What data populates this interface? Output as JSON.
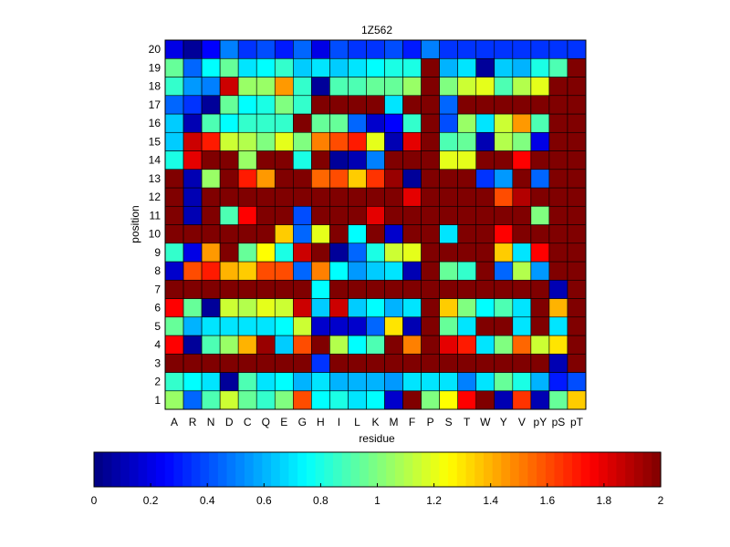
{
  "chart_data": {
    "type": "heatmap",
    "title": "1Z562",
    "xlabel": "residue",
    "ylabel": "position",
    "x_categories": [
      "A",
      "R",
      "N",
      "D",
      "C",
      "Q",
      "E",
      "G",
      "H",
      "I",
      "L",
      "K",
      "M",
      "F",
      "P",
      "S",
      "T",
      "W",
      "Y",
      "V",
      "pY",
      "pS",
      "pT"
    ],
    "y_categories": [
      1,
      2,
      3,
      4,
      5,
      6,
      7,
      8,
      9,
      10,
      11,
      12,
      13,
      14,
      15,
      16,
      17,
      18,
      19,
      20
    ],
    "colormap": "jet",
    "clim": [
      0,
      2
    ],
    "colorbar_ticks": [
      "0",
      "0.2",
      "0.4",
      "0.6",
      "0.8",
      "1",
      "1.2",
      "1.4",
      "1.6",
      "1.8",
      "2"
    ],
    "values": [
      [
        1.05,
        0.45,
        0.9,
        1.15,
        0.95,
        0.85,
        1.0,
        1.6,
        0.75,
        0.8,
        0.7,
        0.75,
        0.15,
        2.0,
        1.0,
        1.25,
        1.75,
        2.0,
        0.1,
        1.65,
        0.1,
        0.95,
        1.35
      ],
      [
        0.85,
        0.75,
        0.7,
        0.05,
        0.9,
        0.7,
        0.75,
        0.6,
        0.7,
        0.6,
        0.6,
        0.6,
        0.55,
        0.7,
        0.7,
        0.7,
        0.5,
        0.7,
        0.95,
        0.8,
        0.6,
        0.3,
        0.4
      ],
      [
        2.0,
        2.0,
        2.0,
        2.0,
        2.0,
        2.0,
        2.0,
        2.0,
        0.35,
        2.0,
        2.0,
        2.0,
        2.0,
        2.0,
        2.0,
        2.0,
        2.0,
        2.0,
        2.0,
        2.0,
        2.0,
        0.1,
        2.0
      ],
      [
        1.75,
        0.05,
        0.9,
        1.05,
        1.4,
        1.95,
        0.65,
        1.6,
        2.0,
        1.1,
        0.75,
        0.9,
        2.0,
        1.5,
        2.0,
        1.8,
        1.7,
        0.7,
        1.0,
        1.55,
        1.15,
        1.3,
        2.0
      ],
      [
        0.95,
        0.6,
        0.7,
        0.7,
        0.7,
        0.7,
        0.75,
        1.15,
        0.15,
        0.15,
        0.15,
        0.45,
        1.3,
        0.1,
        2.0,
        0.95,
        0.7,
        2.0,
        2.0,
        0.7,
        2.0,
        0.7,
        2.0
      ],
      [
        1.75,
        0.95,
        0.05,
        1.15,
        1.1,
        1.2,
        1.15,
        1.85,
        0.65,
        1.85,
        0.65,
        0.75,
        0.6,
        0.7,
        2.0,
        1.35,
        1.0,
        0.75,
        0.9,
        0.7,
        2.0,
        1.4,
        2.0
      ],
      [
        2.0,
        2.0,
        2.0,
        2.0,
        2.0,
        2.0,
        2.0,
        2.0,
        0.75,
        2.0,
        2.0,
        2.0,
        2.0,
        2.0,
        2.0,
        2.0,
        2.0,
        2.0,
        2.0,
        2.0,
        2.0,
        0.1,
        2.0
      ],
      [
        0.15,
        1.6,
        1.7,
        1.4,
        1.35,
        1.6,
        1.6,
        0.45,
        1.5,
        0.75,
        0.55,
        0.65,
        0.7,
        0.1,
        2.0,
        0.95,
        0.85,
        2.0,
        0.45,
        1.1,
        0.55,
        2.0,
        2.0
      ],
      [
        0.85,
        0.2,
        1.45,
        2.0,
        0.95,
        1.25,
        0.8,
        1.85,
        2.0,
        0.05,
        0.45,
        0.8,
        1.15,
        1.2,
        2.0,
        2.0,
        2.0,
        2.0,
        1.35,
        0.7,
        1.75,
        2.0,
        2.0
      ],
      [
        2.0,
        2.0,
        2.0,
        2.0,
        2.0,
        2.0,
        1.35,
        0.45,
        1.2,
        2.0,
        0.75,
        2.0,
        0.15,
        2.0,
        2.0,
        0.7,
        2.0,
        2.0,
        1.75,
        2.0,
        2.0,
        2.0,
        2.0
      ],
      [
        2.0,
        0.1,
        2.0,
        0.9,
        1.75,
        2.0,
        2.0,
        0.4,
        2.0,
        2.0,
        2.0,
        1.8,
        2.0,
        2.0,
        2.0,
        2.0,
        2.0,
        2.0,
        2.0,
        2.0,
        1.0,
        2.0,
        2.0
      ],
      [
        2.0,
        0.1,
        2.0,
        2.0,
        2.0,
        2.0,
        2.0,
        2.0,
        2.0,
        2.0,
        2.0,
        2.0,
        2.0,
        1.8,
        2.0,
        2.0,
        2.0,
        2.0,
        1.6,
        1.9,
        2.0,
        2.0,
        2.0
      ],
      [
        2.0,
        0.1,
        1.05,
        2.0,
        1.7,
        1.45,
        2.0,
        2.0,
        1.55,
        1.6,
        1.35,
        1.65,
        1.95,
        0.05,
        2.0,
        2.0,
        2.0,
        0.35,
        0.55,
        2.0,
        0.45,
        2.0,
        2.0
      ],
      [
        0.8,
        1.8,
        2.0,
        2.0,
        1.05,
        2.0,
        2.0,
        0.8,
        2.0,
        0.05,
        0.1,
        0.5,
        2.0,
        2.0,
        2.0,
        1.2,
        1.2,
        2.0,
        2.0,
        1.75,
        2.0,
        2.0,
        2.0
      ],
      [
        0.65,
        1.85,
        1.7,
        1.15,
        1.1,
        1.0,
        1.2,
        1.0,
        1.5,
        1.6,
        1.7,
        1.2,
        0.1,
        1.8,
        2.0,
        0.9,
        0.95,
        0.1,
        1.1,
        1.0,
        0.2,
        2.0,
        2.0
      ],
      [
        0.65,
        0.1,
        0.9,
        0.75,
        0.85,
        0.85,
        0.85,
        2.0,
        0.95,
        0.95,
        0.45,
        0.15,
        0.25,
        0.85,
        2.0,
        0.4,
        1.05,
        0.7,
        1.15,
        1.45,
        0.9,
        2.0,
        2.0
      ],
      [
        0.45,
        0.35,
        0.05,
        0.95,
        0.75,
        0.8,
        1.0,
        0.85,
        2.0,
        2.0,
        2.0,
        2.0,
        0.7,
        2.0,
        2.0,
        0.45,
        2.0,
        2.0,
        2.0,
        2.0,
        2.0,
        2.0,
        2.0
      ],
      [
        0.85,
        0.55,
        0.5,
        1.85,
        1.05,
        1.05,
        1.45,
        0.85,
        0.05,
        0.9,
        0.9,
        0.95,
        0.95,
        1.05,
        2.0,
        1.0,
        1.15,
        1.2,
        0.9,
        1.1,
        1.2,
        2.0,
        2.0
      ],
      [
        0.95,
        0.45,
        0.75,
        0.95,
        0.7,
        0.75,
        0.85,
        0.65,
        0.7,
        0.65,
        0.7,
        0.75,
        0.8,
        0.8,
        2.0,
        0.6,
        0.7,
        0.05,
        0.65,
        0.6,
        0.8,
        0.9,
        2.0
      ],
      [
        0.2,
        0.05,
        0.25,
        0.5,
        0.35,
        0.4,
        0.3,
        0.45,
        0.2,
        0.4,
        0.35,
        0.35,
        0.4,
        0.3,
        0.5,
        0.35,
        0.35,
        0.35,
        0.35,
        0.35,
        0.35,
        0.35,
        0.35
      ]
    ]
  }
}
